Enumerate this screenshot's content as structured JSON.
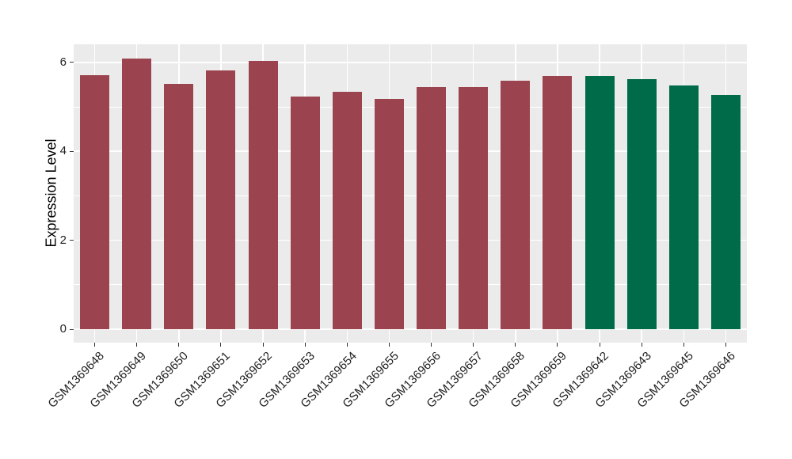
{
  "chart_data": {
    "type": "bar",
    "title": "",
    "xlabel": "",
    "ylabel": "Expression Level",
    "categories": [
      "GSM1369648",
      "GSM1369649",
      "GSM1369650",
      "GSM1369651",
      "GSM1369652",
      "GSM1369653",
      "GSM1369654",
      "GSM1369655",
      "GSM1369656",
      "GSM1369657",
      "GSM1369658",
      "GSM1369659",
      "GSM1369642",
      "GSM1369643",
      "GSM1369645",
      "GSM1369646"
    ],
    "values": [
      5.72,
      6.08,
      5.52,
      5.82,
      6.03,
      5.23,
      5.33,
      5.18,
      5.44,
      5.45,
      5.58,
      5.69,
      5.7,
      5.62,
      5.48,
      5.27
    ],
    "bar_colors": [
      "#9B4450",
      "#9B4450",
      "#9B4450",
      "#9B4450",
      "#9B4450",
      "#9B4450",
      "#9B4450",
      "#9B4450",
      "#9B4450",
      "#9B4450",
      "#9B4450",
      "#9B4450",
      "#006B49",
      "#006B49",
      "#006B49",
      "#006B49"
    ],
    "group_colors": {
      "group1": "#9B4450",
      "group2": "#006B49"
    },
    "ylim": [
      0,
      6.4
    ],
    "yticks": [
      0,
      2,
      4,
      6
    ],
    "yminor": [
      1,
      3,
      5
    ],
    "grid": true,
    "legend": "none",
    "panel_background": "#EBEBEB",
    "gridline_color": "#FFFFFF",
    "axis_text_color": "#1F1F1F",
    "tick_color": "#333333"
  }
}
